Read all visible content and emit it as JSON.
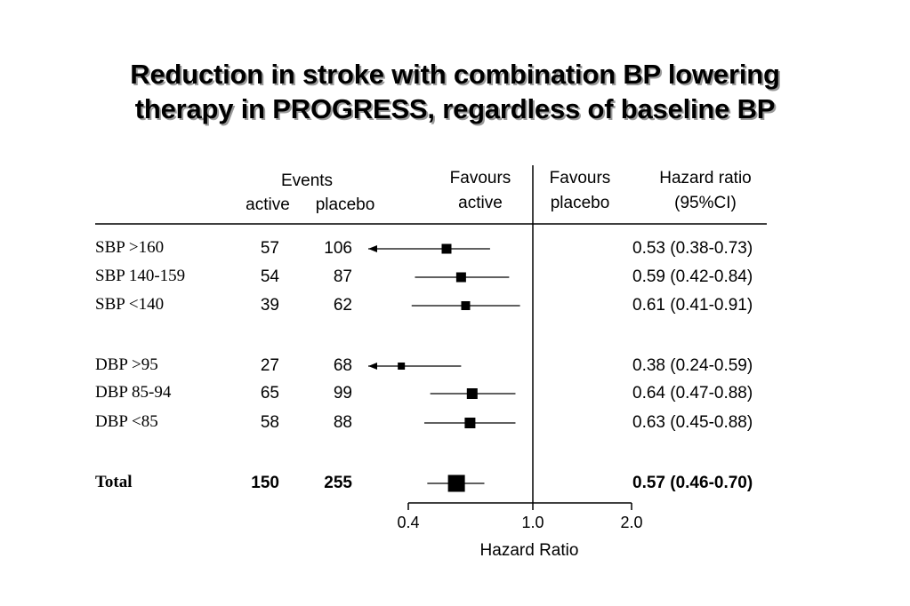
{
  "title": {
    "line1": "Reduction in stroke with combination BP lowering",
    "line2": "therapy in PROGRESS, regardless of baseline BP"
  },
  "header": {
    "events": "Events",
    "active": "active",
    "placebo": "placebo",
    "favours_active_1": "Favours",
    "favours_active_2": "active",
    "favours_placebo_1": "Favours",
    "favours_placebo_2": "placebo",
    "hazard_ratio_1": "Hazard ratio",
    "hazard_ratio_2": "(95%CI)"
  },
  "chart_data": {
    "type": "forest",
    "x_scale": "log",
    "xlim": [
      0.4,
      2.0
    ],
    "xticks": [
      "0.4",
      "1.0",
      "2.0"
    ],
    "xlabel": "Hazard Ratio",
    "reference_line": 1.0,
    "rows": [
      {
        "label": "SBP >160",
        "active": "57",
        "placebo": "106",
        "hr": 0.53,
        "lo": 0.38,
        "hi": 0.73,
        "text": "0.53 (0.38-0.73)",
        "bold": false
      },
      {
        "label": "SBP 140-159",
        "active": "54",
        "placebo": "87",
        "hr": 0.59,
        "lo": 0.42,
        "hi": 0.84,
        "text": "0.59 (0.42-0.84)",
        "bold": false
      },
      {
        "label": "SBP <140",
        "active": "39",
        "placebo": "62",
        "hr": 0.61,
        "lo": 0.41,
        "hi": 0.91,
        "text": "0.61 (0.41-0.91)",
        "bold": false
      },
      {
        "label": "DBP >95",
        "active": "27",
        "placebo": "68",
        "hr": 0.38,
        "lo": 0.24,
        "hi": 0.59,
        "text": "0.38 (0.24-0.59)",
        "bold": false
      },
      {
        "label": "DBP 85-94",
        "active": "65",
        "placebo": "99",
        "hr": 0.64,
        "lo": 0.47,
        "hi": 0.88,
        "text": "0.64 (0.47-0.88)",
        "bold": false
      },
      {
        "label": "DBP <85",
        "active": "58",
        "placebo": "88",
        "hr": 0.63,
        "lo": 0.45,
        "hi": 0.88,
        "text": "0.63 (0.45-0.88)",
        "bold": false
      },
      {
        "label": "Total",
        "active": "150",
        "placebo": "255",
        "hr": 0.57,
        "lo": 0.46,
        "hi": 0.7,
        "text": "0.57 (0.46-0.70)",
        "bold": true
      }
    ]
  }
}
